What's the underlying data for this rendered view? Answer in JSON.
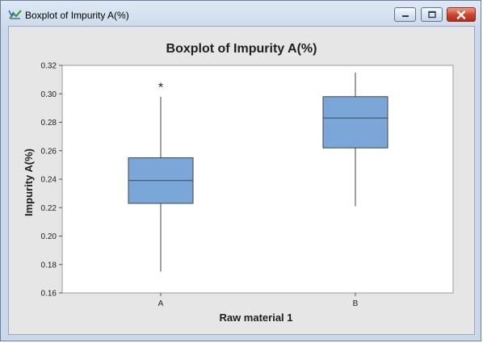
{
  "window": {
    "title": "Boxplot of Impurity A(%)"
  },
  "controls": {
    "minimize_icon": "minimize-icon",
    "maximize_icon": "maximize-icon",
    "close_icon": "close-icon"
  },
  "colors": {
    "box_fill": "#7ba7d8",
    "box_stroke": "#3c4650",
    "plot_bg": "#ffffff",
    "client_bg": "#e6e6e6"
  },
  "chart_data": {
    "type": "boxplot",
    "title": "Boxplot of Impurity A(%)",
    "xlabel": "Raw material 1",
    "ylabel": "Impurity A(%)",
    "categories": [
      "A",
      "B"
    ],
    "ylim": [
      0.16,
      0.32
    ],
    "yticks": [
      "0.16",
      "0.18",
      "0.20",
      "0.22",
      "0.24",
      "0.26",
      "0.28",
      "0.30",
      "0.32"
    ],
    "boxes": [
      {
        "name": "A",
        "whisker_low": 0.175,
        "q1": 0.223,
        "median": 0.239,
        "q3": 0.255,
        "whisker_high": 0.298,
        "outliers": [
          0.305
        ]
      },
      {
        "name": "B",
        "whisker_low": 0.221,
        "q1": 0.262,
        "median": 0.283,
        "q3": 0.298,
        "whisker_high": 0.315,
        "outliers": []
      }
    ],
    "grid": false
  }
}
